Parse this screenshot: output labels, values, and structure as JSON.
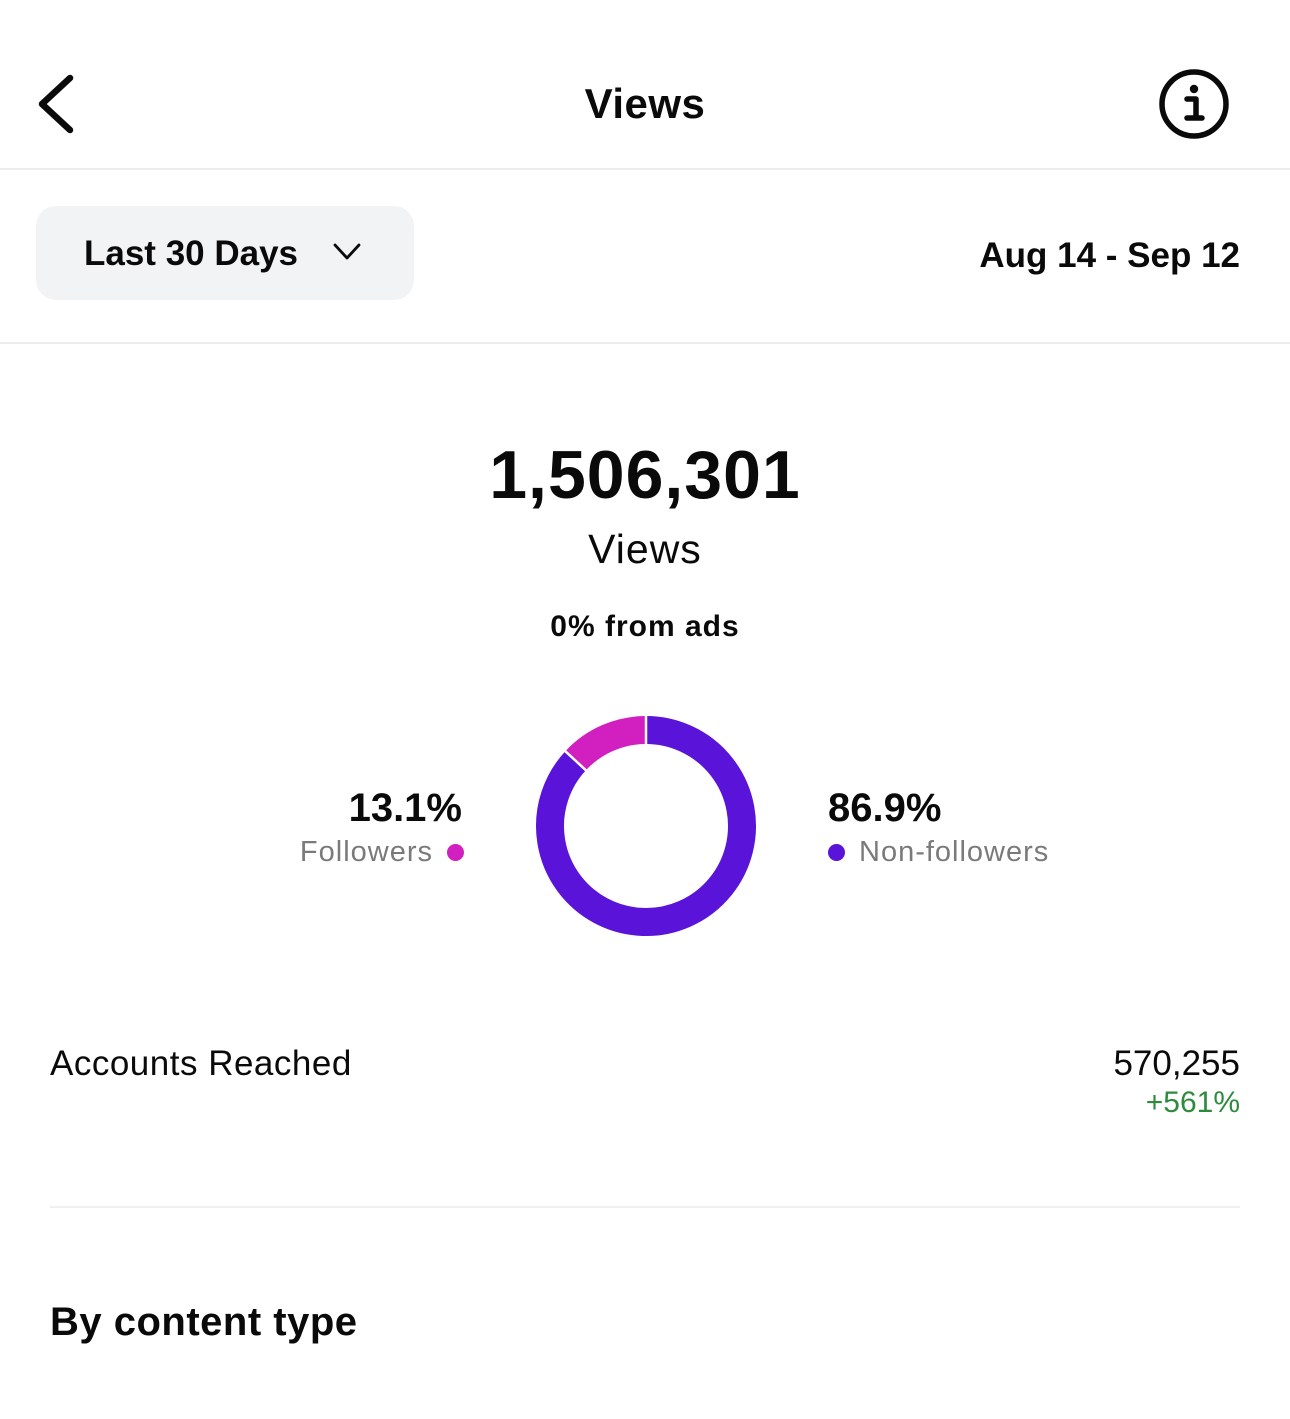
{
  "header": {
    "title": "Views",
    "back_icon": "chevron-left-icon",
    "info_icon": "info-icon"
  },
  "filter": {
    "range_label": "Last 30 Days",
    "dropdown_icon": "chevron-down-icon",
    "date_range": "Aug 14 - Sep 12"
  },
  "summary": {
    "total": "1,506,301",
    "total_label": "Views",
    "ads_note": "0% from ads"
  },
  "chart_data": {
    "type": "pie",
    "categories": [
      "Followers",
      "Non-followers"
    ],
    "values": [
      13.1,
      86.9
    ],
    "value_labels": [
      "13.1%",
      "86.9%"
    ],
    "colors": [
      "#d21fbf",
      "#5a13d9"
    ]
  },
  "metrics": {
    "accounts_reached_label": "Accounts Reached",
    "accounts_reached_value": "570,255",
    "accounts_reached_change": "+561%"
  },
  "sections": {
    "content_type_title": "By content type"
  },
  "colors": {
    "followers": "#d21fbf",
    "non_followers": "#5a13d9",
    "positive": "#2e8b3e"
  }
}
